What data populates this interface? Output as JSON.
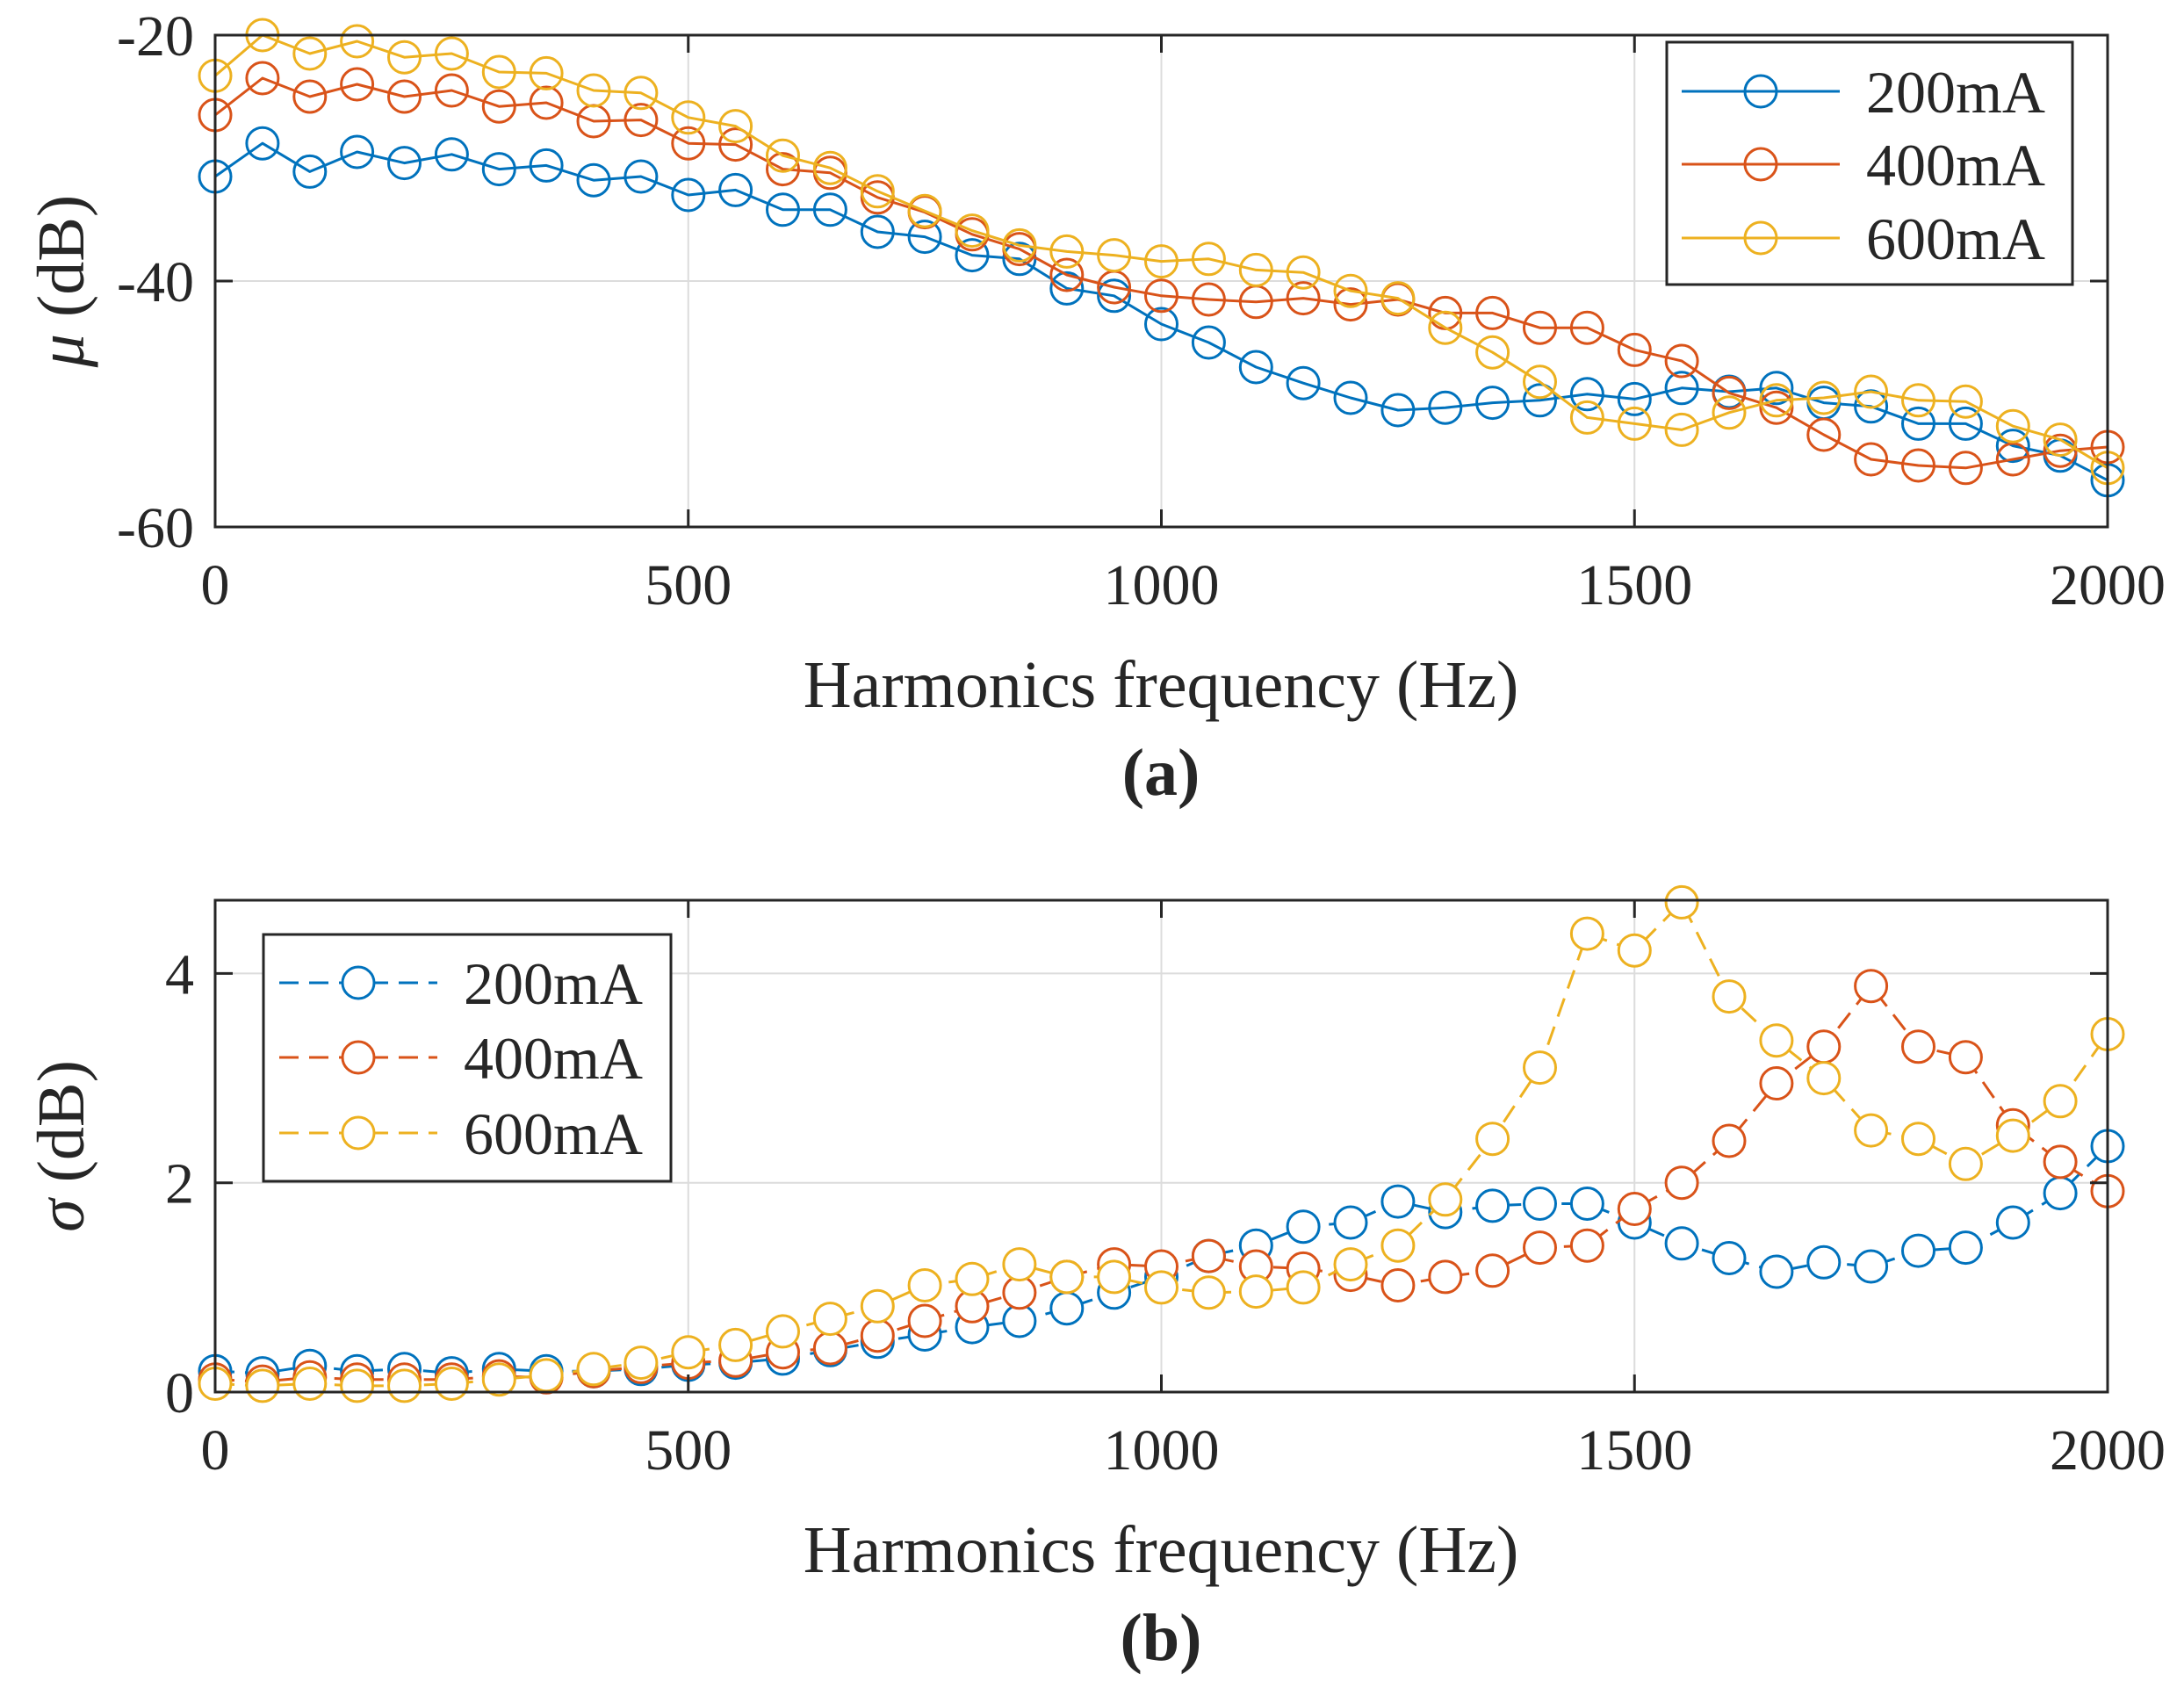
{
  "chart_data": [
    {
      "type": "line",
      "panel_label": "(a)",
      "title": "",
      "xlabel": "Harmonics frequency (Hz)",
      "ylabel_symbol": "μ",
      "ylabel_unit": " (dB)",
      "xlim": [
        0,
        2000
      ],
      "ylim": [
        -60,
        -20
      ],
      "xticks": [
        0,
        500,
        1000,
        1500,
        2000
      ],
      "xtick_labels": [
        "0",
        "500",
        "1000",
        "1500",
        "2000"
      ],
      "yticks": [
        -60,
        -40,
        -20
      ],
      "ytick_labels": [
        "-60",
        "-40",
        "-20"
      ],
      "grid": true,
      "line_style": "solid",
      "legend_position": "top-right",
      "x": [
        0,
        50,
        100,
        150,
        200,
        250,
        300,
        350,
        400,
        450,
        500,
        550,
        600,
        650,
        700,
        750,
        800,
        850,
        900,
        950,
        1000,
        1050,
        1100,
        1150,
        1200,
        1250,
        1300,
        1350,
        1400,
        1450,
        1500,
        1550,
        1600,
        1650,
        1700,
        1750,
        1800,
        1850,
        1900,
        1950,
        2000
      ],
      "series": [
        {
          "name": "200mA",
          "color": "#0072BD",
          "values": [
            -31.5,
            -28.8,
            -31.1,
            -29.5,
            -30.4,
            -29.7,
            -30.9,
            -30.6,
            -31.8,
            -31.5,
            -33.0,
            -32.6,
            -34.2,
            -34.2,
            -36.0,
            -36.4,
            -37.9,
            -38.2,
            -40.6,
            -41.2,
            -43.5,
            -45.0,
            -47.0,
            -48.3,
            -49.5,
            -50.5,
            -50.3,
            -49.9,
            -49.7,
            -49.2,
            -49.6,
            -48.7,
            -49.0,
            -48.7,
            -49.9,
            -50.2,
            -51.6,
            -51.6,
            -53.4,
            -54.2,
            -56.2
          ]
        },
        {
          "name": "400mA",
          "color": "#D95319",
          "values": [
            -26.5,
            -23.5,
            -25.0,
            -24.0,
            -25.0,
            -24.5,
            -25.8,
            -25.5,
            -27.0,
            -26.9,
            -28.8,
            -28.9,
            -30.9,
            -31.2,
            -33.2,
            -34.4,
            -36.2,
            -37.4,
            -39.5,
            -40.5,
            -41.2,
            -41.5,
            -41.7,
            -41.4,
            -41.9,
            -41.5,
            -42.6,
            -42.6,
            -43.8,
            -43.8,
            -45.6,
            -46.5,
            -49.1,
            -50.3,
            -52.5,
            -54.5,
            -55.0,
            -55.2,
            -54.5,
            -53.8,
            -53.5
          ]
        },
        {
          "name": "600mA",
          "color": "#EDB120",
          "values": [
            -23.3,
            -20.0,
            -21.5,
            -20.5,
            -21.8,
            -21.5,
            -23.0,
            -23.1,
            -24.5,
            -24.7,
            -26.7,
            -27.4,
            -29.8,
            -30.8,
            -32.7,
            -34.3,
            -35.9,
            -37.1,
            -37.6,
            -37.9,
            -38.4,
            -38.2,
            -39.1,
            -39.3,
            -40.8,
            -41.4,
            -43.8,
            -45.8,
            -48.2,
            -51.1,
            -51.6,
            -52.1,
            -50.7,
            -49.7,
            -49.5,
            -49.0,
            -49.7,
            -49.8,
            -51.8,
            -52.9,
            -55.2
          ]
        }
      ]
    },
    {
      "type": "line",
      "panel_label": "(b)",
      "title": "",
      "xlabel": "Harmonics frequency (Hz)",
      "ylabel_symbol": "σ",
      "ylabel_unit": " (dB)",
      "xlim": [
        0,
        2000
      ],
      "ylim": [
        0,
        4.7
      ],
      "xticks": [
        0,
        500,
        1000,
        1500,
        2000
      ],
      "xtick_labels": [
        "0",
        "500",
        "1000",
        "1500",
        "2000"
      ],
      "yticks": [
        0,
        2,
        4
      ],
      "ytick_labels": [
        "0",
        "2",
        "4"
      ],
      "grid": true,
      "line_style": "dashed",
      "legend_position": "top-left",
      "x": [
        0,
        50,
        100,
        150,
        200,
        250,
        300,
        350,
        400,
        450,
        500,
        550,
        600,
        650,
        700,
        750,
        800,
        850,
        900,
        950,
        1000,
        1050,
        1100,
        1150,
        1200,
        1250,
        1300,
        1350,
        1400,
        1450,
        1500,
        1550,
        1600,
        1650,
        1700,
        1750,
        1800,
        1850,
        1900,
        1950,
        2000
      ],
      "series": [
        {
          "name": "200mA",
          "color": "#0072BD",
          "values": [
            0.2,
            0.18,
            0.25,
            0.2,
            0.22,
            0.18,
            0.22,
            0.2,
            0.2,
            0.22,
            0.26,
            0.28,
            0.32,
            0.4,
            0.48,
            0.55,
            0.62,
            0.68,
            0.8,
            0.95,
            1.1,
            1.3,
            1.4,
            1.58,
            1.62,
            1.82,
            1.72,
            1.78,
            1.8,
            1.8,
            1.62,
            1.42,
            1.28,
            1.15,
            1.24,
            1.2,
            1.35,
            1.38,
            1.62,
            1.9,
            2.35
          ]
        },
        {
          "name": "400mA",
          "color": "#D95319",
          "values": [
            0.12,
            0.1,
            0.14,
            0.12,
            0.12,
            0.12,
            0.15,
            0.14,
            0.2,
            0.24,
            0.28,
            0.3,
            0.38,
            0.42,
            0.54,
            0.68,
            0.82,
            0.95,
            1.1,
            1.22,
            1.2,
            1.3,
            1.2,
            1.18,
            1.12,
            1.02,
            1.1,
            1.16,
            1.38,
            1.4,
            1.75,
            2.0,
            2.4,
            2.95,
            3.3,
            3.88,
            3.3,
            3.2,
            2.55,
            2.2,
            1.92
          ]
        },
        {
          "name": "600mA",
          "color": "#EDB120",
          "values": [
            0.08,
            0.06,
            0.08,
            0.06,
            0.06,
            0.08,
            0.12,
            0.16,
            0.22,
            0.28,
            0.38,
            0.45,
            0.58,
            0.7,
            0.82,
            1.02,
            1.08,
            1.22,
            1.1,
            1.1,
            1.0,
            0.95,
            0.96,
            1.0,
            1.22,
            1.4,
            1.84,
            2.42,
            3.1,
            4.38,
            4.22,
            4.68,
            3.78,
            3.36,
            3.0,
            2.5,
            2.42,
            2.18,
            2.45,
            2.78,
            3.42
          ]
        }
      ]
    }
  ]
}
